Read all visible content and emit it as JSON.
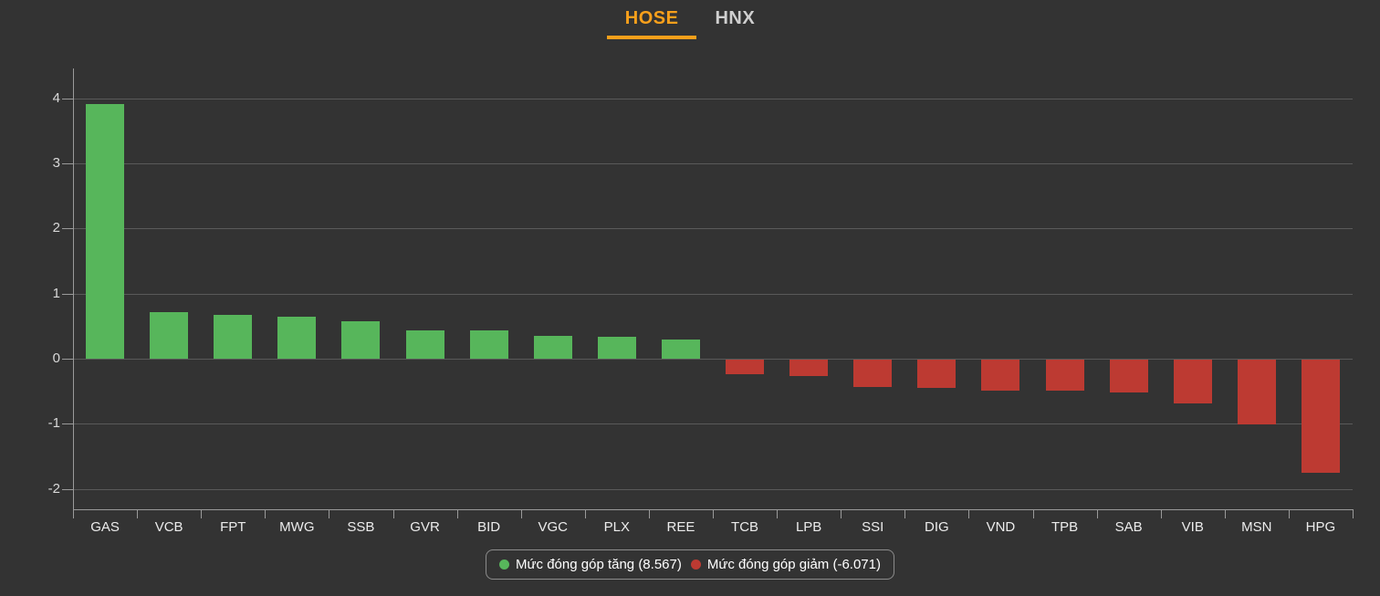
{
  "tabs": [
    {
      "label": "HOSE",
      "active": true
    },
    {
      "label": "HNX",
      "active": false
    }
  ],
  "colors": {
    "background": "#333333",
    "accent": "#f9a01b",
    "positive": "#57b65b",
    "negative": "#bd3a32",
    "grid": "#5a5a5a",
    "axis": "#9a9a9a",
    "ytick_text": "#d9d9d9",
    "xtick_text": "#ececec",
    "inactive_tab": "#cfcfcf"
  },
  "legend": {
    "increase": {
      "label": "Mức đóng góp tăng (8.567)",
      "total": 8.567
    },
    "decrease": {
      "label": "Mức đóng góp giảm (-6.071)",
      "total": -6.071
    }
  },
  "chart_data": {
    "type": "bar",
    "title": "",
    "xlabel": "",
    "ylabel": "",
    "categories": [
      "GAS",
      "VCB",
      "FPT",
      "MWG",
      "SSB",
      "GVR",
      "BID",
      "VGC",
      "PLX",
      "REE",
      "TCB",
      "LPB",
      "SSI",
      "DIG",
      "VND",
      "TPB",
      "SAB",
      "VIB",
      "MSN",
      "HPG"
    ],
    "values": [
      3.92,
      0.71,
      0.67,
      0.64,
      0.58,
      0.44,
      0.43,
      0.35,
      0.34,
      0.3,
      -0.23,
      -0.25,
      -0.42,
      -0.44,
      -0.47,
      -0.48,
      -0.51,
      -0.67,
      -1.0,
      -1.74
    ],
    "series": [
      {
        "name": "Mức đóng góp tăng (8.567)",
        "color": "#57b65b",
        "sign": "positive"
      },
      {
        "name": "Mức đóng góp giảm (-6.071)",
        "color": "#bd3a32",
        "sign": "negative"
      }
    ],
    "yticks": [
      4,
      3,
      2,
      1,
      0,
      -1,
      -2
    ],
    "ylim": [
      -2.31,
      4.46
    ],
    "grid": true,
    "legend_position": "bottom"
  }
}
